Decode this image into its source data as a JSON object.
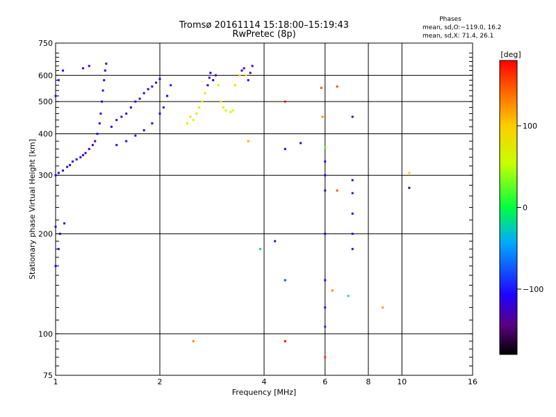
{
  "chart_data": {
    "type": "scatter",
    "title": "Tromsø 20161114 15:18:00–15:19:43",
    "subtitle": "RwPretec (8p)",
    "xlabel": "Frequency [MHz]",
    "ylabel": "Stationary phase Virtual Height [km]",
    "x_scale": "log2",
    "y_scale": "log",
    "xlim": [
      1,
      16
    ],
    "ylim": [
      75,
      750
    ],
    "x_ticks": [
      1,
      2,
      4,
      6,
      8,
      10,
      16
    ],
    "y_ticks": [
      75,
      100,
      200,
      300,
      400,
      500,
      600,
      750
    ],
    "x_gridlines": [
      1,
      2,
      4,
      6,
      8,
      10,
      16
    ],
    "y_gridlines": [
      75,
      100,
      200,
      300,
      400,
      500,
      600,
      750
    ],
    "grid": true,
    "info": {
      "heading": "Phases",
      "line1": "mean, sd,O:−119.0, 16.2",
      "line2": "mean, sd,X:  71.4, 26.1"
    },
    "colorbar": {
      "label": "[deg]",
      "ticks": [
        100,
        0,
        -100
      ],
      "range": [
        -180,
        180
      ]
    },
    "points": [
      {
        "x": 1.0,
        "y": 300,
        "p": -110
      },
      {
        "x": 1.02,
        "y": 305,
        "p": -120
      },
      {
        "x": 1.05,
        "y": 310,
        "p": -115
      },
      {
        "x": 1.08,
        "y": 318,
        "p": -125
      },
      {
        "x": 1.1,
        "y": 322,
        "p": -110
      },
      {
        "x": 1.12,
        "y": 330,
        "p": -118
      },
      {
        "x": 1.15,
        "y": 335,
        "p": -122
      },
      {
        "x": 1.18,
        "y": 340,
        "p": -115
      },
      {
        "x": 1.2,
        "y": 345,
        "p": -120
      },
      {
        "x": 1.22,
        "y": 350,
        "p": -112
      },
      {
        "x": 1.25,
        "y": 360,
        "p": -125
      },
      {
        "x": 1.28,
        "y": 370,
        "p": -118
      },
      {
        "x": 1.3,
        "y": 380,
        "p": -130
      },
      {
        "x": 1.32,
        "y": 400,
        "p": -120
      },
      {
        "x": 1.34,
        "y": 430,
        "p": -115
      },
      {
        "x": 1.35,
        "y": 460,
        "p": -125
      },
      {
        "x": 1.36,
        "y": 500,
        "p": -120
      },
      {
        "x": 1.37,
        "y": 540,
        "p": -118
      },
      {
        "x": 1.38,
        "y": 580,
        "p": -122
      },
      {
        "x": 1.39,
        "y": 620,
        "p": -115
      },
      {
        "x": 1.4,
        "y": 650,
        "p": -125
      },
      {
        "x": 1.45,
        "y": 420,
        "p": -120
      },
      {
        "x": 1.5,
        "y": 440,
        "p": -118
      },
      {
        "x": 1.55,
        "y": 450,
        "p": -125
      },
      {
        "x": 1.6,
        "y": 460,
        "p": -112
      },
      {
        "x": 1.65,
        "y": 480,
        "p": -120
      },
      {
        "x": 1.7,
        "y": 500,
        "p": -115
      },
      {
        "x": 1.75,
        "y": 510,
        "p": -128
      },
      {
        "x": 1.8,
        "y": 530,
        "p": -120
      },
      {
        "x": 1.85,
        "y": 545,
        "p": -118
      },
      {
        "x": 1.9,
        "y": 555,
        "p": -122
      },
      {
        "x": 1.95,
        "y": 570,
        "p": -115
      },
      {
        "x": 2.0,
        "y": 585,
        "p": -125
      },
      {
        "x": 1.5,
        "y": 370,
        "p": -120
      },
      {
        "x": 1.6,
        "y": 380,
        "p": -118
      },
      {
        "x": 1.7,
        "y": 395,
        "p": -122
      },
      {
        "x": 1.8,
        "y": 410,
        "p": -115
      },
      {
        "x": 1.9,
        "y": 430,
        "p": -125
      },
      {
        "x": 2.0,
        "y": 460,
        "p": -120
      },
      {
        "x": 2.05,
        "y": 480,
        "p": -118
      },
      {
        "x": 2.1,
        "y": 520,
        "p": -110
      },
      {
        "x": 2.15,
        "y": 560,
        "p": -100
      },
      {
        "x": 2.4,
        "y": 430,
        "p": 70
      },
      {
        "x": 2.45,
        "y": 450,
        "p": 80
      },
      {
        "x": 2.5,
        "y": 440,
        "p": 65
      },
      {
        "x": 2.55,
        "y": 460,
        "p": 75
      },
      {
        "x": 2.6,
        "y": 480,
        "p": 85
      },
      {
        "x": 2.65,
        "y": 500,
        "p": 70
      },
      {
        "x": 2.7,
        "y": 530,
        "p": 78
      },
      {
        "x": 2.75,
        "y": 560,
        "p": -115
      },
      {
        "x": 2.78,
        "y": 590,
        "p": -120
      },
      {
        "x": 2.8,
        "y": 610,
        "p": -110
      },
      {
        "x": 2.85,
        "y": 580,
        "p": -118
      },
      {
        "x": 2.9,
        "y": 600,
        "p": -125
      },
      {
        "x": 2.95,
        "y": 560,
        "p": 60
      },
      {
        "x": 3.0,
        "y": 500,
        "p": 75
      },
      {
        "x": 3.05,
        "y": 480,
        "p": 70
      },
      {
        "x": 3.1,
        "y": 470,
        "p": 55
      },
      {
        "x": 3.2,
        "y": 465,
        "p": 60
      },
      {
        "x": 3.25,
        "y": 470,
        "p": 50
      },
      {
        "x": 3.3,
        "y": 560,
        "p": 80
      },
      {
        "x": 3.4,
        "y": 600,
        "p": 85
      },
      {
        "x": 3.45,
        "y": 620,
        "p": -118
      },
      {
        "x": 3.5,
        "y": 630,
        "p": -122
      },
      {
        "x": 3.55,
        "y": 600,
        "p": 70
      },
      {
        "x": 3.6,
        "y": 580,
        "p": -115
      },
      {
        "x": 3.65,
        "y": 610,
        "p": -120
      },
      {
        "x": 3.7,
        "y": 640,
        "p": -125
      },
      {
        "x": 1.0,
        "y": 210,
        "p": -115
      },
      {
        "x": 1.03,
        "y": 200,
        "p": -120
      },
      {
        "x": 1.06,
        "y": 215,
        "p": -118
      },
      {
        "x": 1.02,
        "y": 180,
        "p": -125
      },
      {
        "x": 1.0,
        "y": 160,
        "p": -110
      },
      {
        "x": 1.0,
        "y": 520,
        "p": -118
      },
      {
        "x": 1.02,
        "y": 580,
        "p": -120
      },
      {
        "x": 1.05,
        "y": 620,
        "p": -115
      },
      {
        "x": 1.2,
        "y": 630,
        "p": -122
      },
      {
        "x": 1.25,
        "y": 640,
        "p": -118
      },
      {
        "x": 3.6,
        "y": 380,
        "p": 110
      },
      {
        "x": 3.9,
        "y": 180,
        "p": -10
      },
      {
        "x": 4.3,
        "y": 190,
        "p": -125
      },
      {
        "x": 4.6,
        "y": 500,
        "p": 175
      },
      {
        "x": 4.6,
        "y": 360,
        "p": -110
      },
      {
        "x": 4.6,
        "y": 145,
        "p": -80
      },
      {
        "x": 5.1,
        "y": 375,
        "p": -125
      },
      {
        "x": 2.5,
        "y": 95,
        "p": 130
      },
      {
        "x": 4.6,
        "y": 95,
        "p": 180
      },
      {
        "x": 5.85,
        "y": 550,
        "p": 150
      },
      {
        "x": 5.9,
        "y": 450,
        "p": 130
      },
      {
        "x": 6.0,
        "y": 365,
        "p": 30
      },
      {
        "x": 6.0,
        "y": 330,
        "p": -118
      },
      {
        "x": 6.0,
        "y": 300,
        "p": -115
      },
      {
        "x": 6.0,
        "y": 270,
        "p": -120
      },
      {
        "x": 6.0,
        "y": 200,
        "p": -110
      },
      {
        "x": 6.0,
        "y": 145,
        "p": -115
      },
      {
        "x": 6.0,
        "y": 120,
        "p": -100
      },
      {
        "x": 6.0,
        "y": 105,
        "p": -90
      },
      {
        "x": 6.0,
        "y": 85,
        "p": 160
      },
      {
        "x": 6.3,
        "y": 135,
        "p": 130
      },
      {
        "x": 6.5,
        "y": 270,
        "p": 150
      },
      {
        "x": 6.5,
        "y": 555,
        "p": 150
      },
      {
        "x": 7.0,
        "y": 130,
        "p": -10
      },
      {
        "x": 7.2,
        "y": 450,
        "p": -118
      },
      {
        "x": 7.2,
        "y": 290,
        "p": -118
      },
      {
        "x": 7.2,
        "y": 265,
        "p": -120
      },
      {
        "x": 7.2,
        "y": 230,
        "p": -115
      },
      {
        "x": 7.2,
        "y": 200,
        "p": -110
      },
      {
        "x": 7.2,
        "y": 180,
        "p": -118
      },
      {
        "x": 8.8,
        "y": 120,
        "p": 120
      },
      {
        "x": 10.5,
        "y": 305,
        "p": 100
      },
      {
        "x": 10.5,
        "y": 275,
        "p": -118
      }
    ]
  }
}
